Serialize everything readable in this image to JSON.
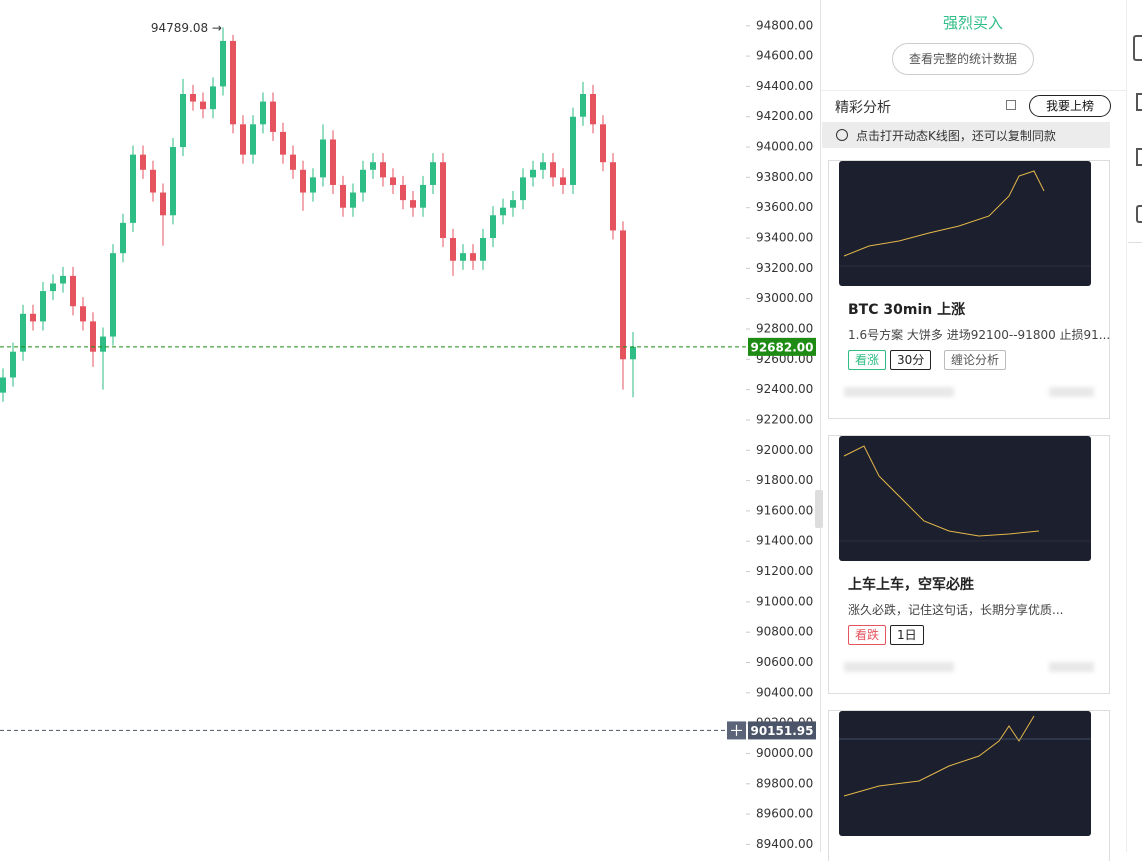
{
  "chart_data": {
    "type": "candlestick",
    "up_color": "#2ebd85",
    "down_color": "#e5535f",
    "ylim": [
      89350,
      94970
    ],
    "yticks": [
      {
        "value": 94800,
        "label": "94800.00"
      },
      {
        "value": 94600,
        "label": "94600.00"
      },
      {
        "value": 94400,
        "label": "94400.00"
      },
      {
        "value": 94200,
        "label": "94200.00"
      },
      {
        "value": 94000,
        "label": "94000.00"
      },
      {
        "value": 93800,
        "label": "93800.00"
      },
      {
        "value": 93600,
        "label": "93600.00"
      },
      {
        "value": 93400,
        "label": "93400.00"
      },
      {
        "value": 93200,
        "label": "93200.00"
      },
      {
        "value": 93000,
        "label": "93000.00"
      },
      {
        "value": 92800,
        "label": "92800.00"
      },
      {
        "value": 92600,
        "label": "92600.00"
      },
      {
        "value": 92400,
        "label": "92400.00"
      },
      {
        "value": 92200,
        "label": "92200.00"
      },
      {
        "value": 92000,
        "label": "92000.00"
      },
      {
        "value": 91800,
        "label": "91800.00"
      },
      {
        "value": 91600,
        "label": "91600.00"
      },
      {
        "value": 91400,
        "label": "91400.00"
      },
      {
        "value": 91200,
        "label": "91200.00"
      },
      {
        "value": 91000,
        "label": "91000.00"
      },
      {
        "value": 90800,
        "label": "90800.00"
      },
      {
        "value": 90600,
        "label": "90600.00"
      },
      {
        "value": 90400,
        "label": "90400.00"
      },
      {
        "value": 90200,
        "label": "90200.00"
      },
      {
        "value": 90000,
        "label": "90000.00"
      },
      {
        "value": 89800,
        "label": "89800.00"
      },
      {
        "value": 89600,
        "label": "89600.00"
      },
      {
        "value": 89400,
        "label": "89400.00"
      }
    ],
    "max_marker": {
      "value": 94789.08,
      "label": "94789.08 →"
    },
    "price_lines": [
      {
        "value": 92682,
        "label": "92682.00",
        "color": "#1e8c14"
      },
      {
        "value": 90151.95,
        "label": "90151.95",
        "color": "#4b5468"
      }
    ],
    "candles": [
      {
        "open": 92380,
        "high": 92540,
        "low": 92320,
        "close": 92480
      },
      {
        "open": 92480,
        "high": 92710,
        "low": 92420,
        "close": 92650
      },
      {
        "open": 92650,
        "high": 92960,
        "low": 92590,
        "close": 92900
      },
      {
        "open": 92900,
        "high": 92960,
        "low": 92790,
        "close": 92850
      },
      {
        "open": 92850,
        "high": 93110,
        "low": 92790,
        "close": 93050
      },
      {
        "open": 93050,
        "high": 93160,
        "low": 92990,
        "close": 93100
      },
      {
        "open": 93100,
        "high": 93210,
        "low": 93040,
        "close": 93150
      },
      {
        "open": 93150,
        "high": 93210,
        "low": 92890,
        "close": 92950
      },
      {
        "open": 92950,
        "high": 93010,
        "low": 92790,
        "close": 92850
      },
      {
        "open": 92850,
        "high": 92910,
        "low": 92550,
        "close": 92650
      },
      {
        "open": 92650,
        "high": 92810,
        "low": 92400,
        "close": 92750
      },
      {
        "open": 92750,
        "high": 93360,
        "low": 92690,
        "close": 93300
      },
      {
        "open": 93300,
        "high": 93560,
        "low": 93240,
        "close": 93500
      },
      {
        "open": 93500,
        "high": 94010,
        "low": 93440,
        "close": 93950
      },
      {
        "open": 93950,
        "high": 94010,
        "low": 93790,
        "close": 93850
      },
      {
        "open": 93850,
        "high": 93910,
        "low": 93640,
        "close": 93700
      },
      {
        "open": 93700,
        "high": 93760,
        "low": 93350,
        "close": 93550
      },
      {
        "open": 93550,
        "high": 94060,
        "low": 93490,
        "close": 94000
      },
      {
        "open": 94000,
        "high": 94450,
        "low": 93940,
        "close": 94350
      },
      {
        "open": 94350,
        "high": 94410,
        "low": 94240,
        "close": 94300
      },
      {
        "open": 94300,
        "high": 94360,
        "low": 94190,
        "close": 94250
      },
      {
        "open": 94250,
        "high": 94460,
        "low": 94190,
        "close": 94400
      },
      {
        "open": 94400,
        "high": 94789.08,
        "low": 94340,
        "close": 94700
      },
      {
        "open": 94700,
        "high": 94740,
        "low": 94090,
        "close": 94150
      },
      {
        "open": 94150,
        "high": 94210,
        "low": 93890,
        "close": 93950
      },
      {
        "open": 93950,
        "high": 94210,
        "low": 93890,
        "close": 94150
      },
      {
        "open": 94150,
        "high": 94360,
        "low": 94090,
        "close": 94300
      },
      {
        "open": 94300,
        "high": 94360,
        "low": 94040,
        "close": 94100
      },
      {
        "open": 94100,
        "high": 94160,
        "low": 93890,
        "close": 93950
      },
      {
        "open": 93950,
        "high": 94010,
        "low": 93790,
        "close": 93850
      },
      {
        "open": 93850,
        "high": 93910,
        "low": 93580,
        "close": 93700
      },
      {
        "open": 93700,
        "high": 93860,
        "low": 93640,
        "close": 93800
      },
      {
        "open": 93800,
        "high": 94150,
        "low": 93740,
        "close": 94050
      },
      {
        "open": 94050,
        "high": 94110,
        "low": 93690,
        "close": 93750
      },
      {
        "open": 93750,
        "high": 93810,
        "low": 93540,
        "close": 93600
      },
      {
        "open": 93600,
        "high": 93760,
        "low": 93540,
        "close": 93700
      },
      {
        "open": 93700,
        "high": 93910,
        "low": 93640,
        "close": 93850
      },
      {
        "open": 93850,
        "high": 93960,
        "low": 93790,
        "close": 93900
      },
      {
        "open": 93900,
        "high": 93960,
        "low": 93740,
        "close": 93800
      },
      {
        "open": 93800,
        "high": 93860,
        "low": 93690,
        "close": 93750
      },
      {
        "open": 93750,
        "high": 93810,
        "low": 93590,
        "close": 93650
      },
      {
        "open": 93650,
        "high": 93710,
        "low": 93540,
        "close": 93600
      },
      {
        "open": 93600,
        "high": 93810,
        "low": 93540,
        "close": 93750
      },
      {
        "open": 93750,
        "high": 93960,
        "low": 93690,
        "close": 93900
      },
      {
        "open": 93900,
        "high": 93960,
        "low": 93340,
        "close": 93400
      },
      {
        "open": 93400,
        "high": 93460,
        "low": 93150,
        "close": 93250
      },
      {
        "open": 93250,
        "high": 93360,
        "low": 93190,
        "close": 93300
      },
      {
        "open": 93300,
        "high": 93360,
        "low": 93190,
        "close": 93250
      },
      {
        "open": 93250,
        "high": 93460,
        "low": 93190,
        "close": 93400
      },
      {
        "open": 93400,
        "high": 93610,
        "low": 93340,
        "close": 93550
      },
      {
        "open": 93550,
        "high": 93660,
        "low": 93490,
        "close": 93600
      },
      {
        "open": 93600,
        "high": 93710,
        "low": 93540,
        "close": 93650
      },
      {
        "open": 93650,
        "high": 93860,
        "low": 93590,
        "close": 93800
      },
      {
        "open": 93800,
        "high": 93910,
        "low": 93740,
        "close": 93850
      },
      {
        "open": 93850,
        "high": 93960,
        "low": 93790,
        "close": 93900
      },
      {
        "open": 93900,
        "high": 93960,
        "low": 93740,
        "close": 93800
      },
      {
        "open": 93800,
        "high": 93860,
        "low": 93690,
        "close": 93750
      },
      {
        "open": 93750,
        "high": 94260,
        "low": 93690,
        "close": 94200
      },
      {
        "open": 94200,
        "high": 94430,
        "low": 94140,
        "close": 94350
      },
      {
        "open": 94350,
        "high": 94410,
        "low": 94090,
        "close": 94150
      },
      {
        "open": 94150,
        "high": 94210,
        "low": 93840,
        "close": 93900
      },
      {
        "open": 93900,
        "high": 93960,
        "low": 93390,
        "close": 93450
      },
      {
        "open": 93450,
        "high": 93510,
        "low": 92400,
        "close": 92600
      },
      {
        "open": 92600,
        "high": 92780,
        "low": 92350,
        "close": 92682
      }
    ]
  },
  "panel": {
    "rating": "强烈买入",
    "stats_button": "查看完整的统计数据",
    "section_title": "精彩分析",
    "rank_button": "我要上榜",
    "notice": "点击打开动态K线图，还可以复制同款",
    "cards": [
      {
        "title": "BTC 30min 上涨",
        "description": "1.6号方案 大饼多 进场92100--91800 止损91...",
        "tags": [
          "看涨",
          "30分",
          "缠论分析"
        ]
      },
      {
        "title": "上车上车，空军必胜",
        "description": "涨久必跌，记住这句话，长期分享优质...",
        "tags": [
          "看跌",
          "1日"
        ]
      }
    ]
  }
}
